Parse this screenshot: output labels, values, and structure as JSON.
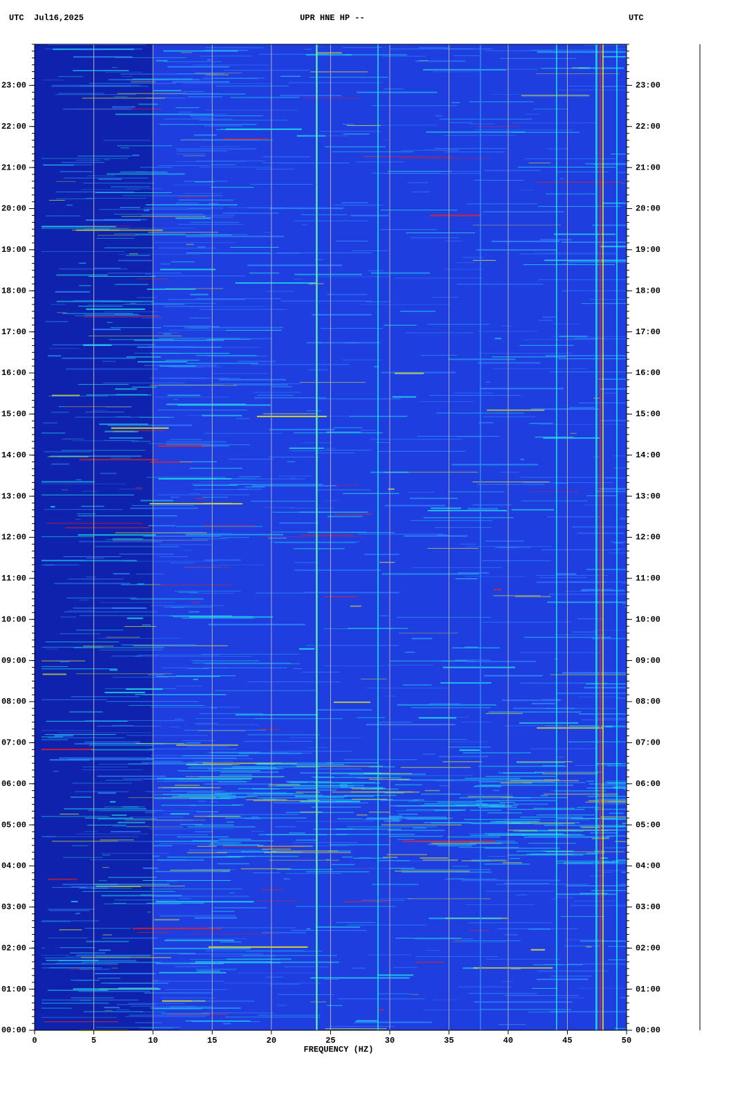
{
  "chart_data": {
    "type": "spectrogram",
    "title": "UPR HNE HP --",
    "time_zone_label": "UTC",
    "date": "Jul16,2025",
    "x_label": "FREQUENCY (HZ)",
    "xlim": [
      0,
      50
    ],
    "xticks": [
      0,
      5,
      10,
      15,
      20,
      25,
      30,
      35,
      40,
      45,
      50
    ],
    "ylim": [
      0,
      24
    ],
    "yticks": [
      {
        "value": 0,
        "label": "00:00"
      },
      {
        "value": 1,
        "label": "01:00"
      },
      {
        "value": 2,
        "label": "02:00"
      },
      {
        "value": 3,
        "label": "03:00"
      },
      {
        "value": 4,
        "label": "04:00"
      },
      {
        "value": 5,
        "label": "05:00"
      },
      {
        "value": 6,
        "label": "06:00"
      },
      {
        "value": 7,
        "label": "07:00"
      },
      {
        "value": 8,
        "label": "08:00"
      },
      {
        "value": 9,
        "label": "09:00"
      },
      {
        "value": 10,
        "label": "10:00"
      },
      {
        "value": 11,
        "label": "11:00"
      },
      {
        "value": 12,
        "label": "12:00"
      },
      {
        "value": 13,
        "label": "13:00"
      },
      {
        "value": 14,
        "label": "14:00"
      },
      {
        "value": 15,
        "label": "15:00"
      },
      {
        "value": 16,
        "label": "16:00"
      },
      {
        "value": 17,
        "label": "17:00"
      },
      {
        "value": 18,
        "label": "18:00"
      },
      {
        "value": 19,
        "label": "19:00"
      },
      {
        "value": 20,
        "label": "20:00"
      },
      {
        "value": 21,
        "label": "21:00"
      },
      {
        "value": 22,
        "label": "22:00"
      },
      {
        "value": 23,
        "label": "23:00"
      }
    ],
    "grid": true,
    "grid_color": "#b0b0b0",
    "colormap": [
      "#0a1a9c",
      "#1f3ee0",
      "#2f8cff",
      "#20e8f0",
      "#f0f020",
      "#ff2010"
    ]
  }
}
